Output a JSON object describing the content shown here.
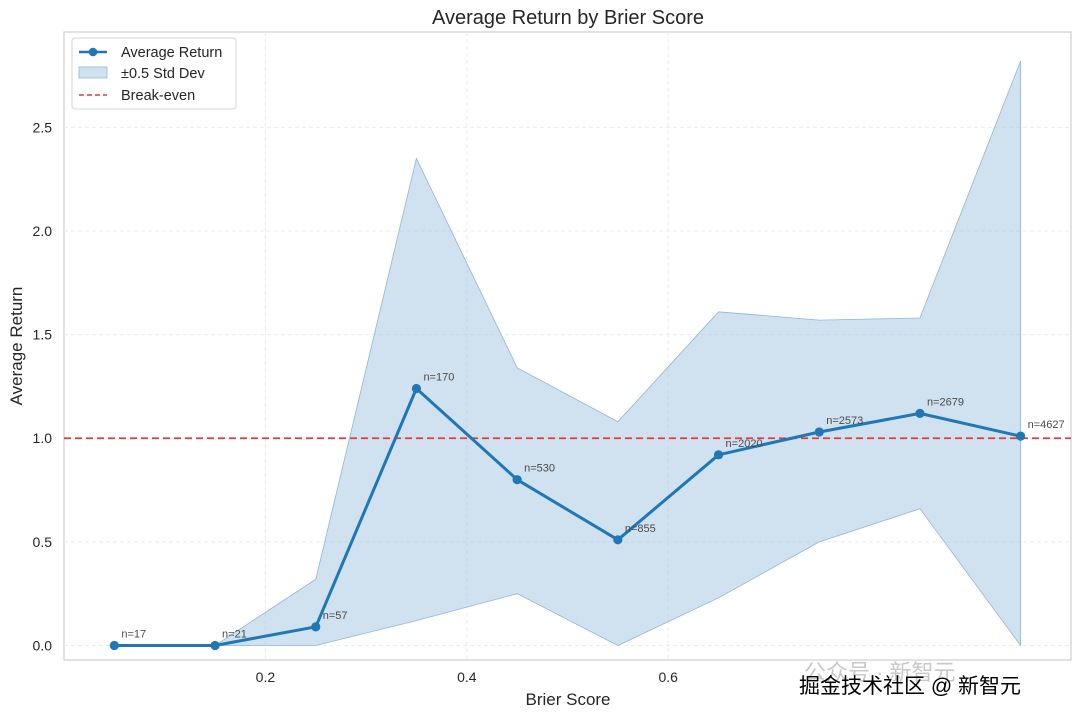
{
  "chart_data": {
    "type": "line",
    "title": "Average Return by Brier Score",
    "xlabel": "Brier Score",
    "ylabel": "Average Return",
    "xlim": [
      0.0,
      1.0
    ],
    "ylim": [
      -0.07,
      2.96
    ],
    "xticks": [
      0.2,
      0.4,
      0.6
    ],
    "xtick_labels": [
      "0.2",
      "0.4",
      "0.6"
    ],
    "yticks": [
      0.0,
      0.5,
      1.0,
      1.5,
      2.0,
      2.5
    ],
    "ytick_labels": [
      "0.0",
      "0.5",
      "1.0",
      "1.5",
      "2.0",
      "2.5"
    ],
    "grid": true,
    "legend_position": "top-left",
    "x": [
      0.05,
      0.15,
      0.25,
      0.35,
      0.45,
      0.55,
      0.65,
      0.75,
      0.85,
      0.95
    ],
    "series": [
      {
        "name": "Average Return",
        "values": [
          0.0,
          0.0,
          0.09,
          1.24,
          0.8,
          0.51,
          0.92,
          1.03,
          1.12,
          1.01
        ],
        "color": "#1f77b4",
        "point_labels": [
          "n=17",
          "n=21",
          "n=57",
          "n=170",
          "n=530",
          "n=855",
          "n=2020",
          "n=2573",
          "n=2679",
          "n=4627"
        ]
      },
      {
        "name": "±0.5 Std Dev",
        "type": "band",
        "lower": [
          0.0,
          0.0,
          0.0,
          0.12,
          0.25,
          0.0,
          0.23,
          0.5,
          0.66,
          0.0
        ],
        "upper": [
          0.0,
          0.0,
          0.32,
          2.35,
          1.34,
          1.08,
          1.61,
          1.57,
          1.58,
          2.82
        ],
        "color": "#a9c8e3"
      },
      {
        "name": "Break-even",
        "type": "hline",
        "value": 1.0,
        "color": "#e8383d"
      }
    ]
  },
  "watermark": {
    "line1": "公众号 · 新智元",
    "line2": "掘金技术社区 @ 新智元"
  }
}
